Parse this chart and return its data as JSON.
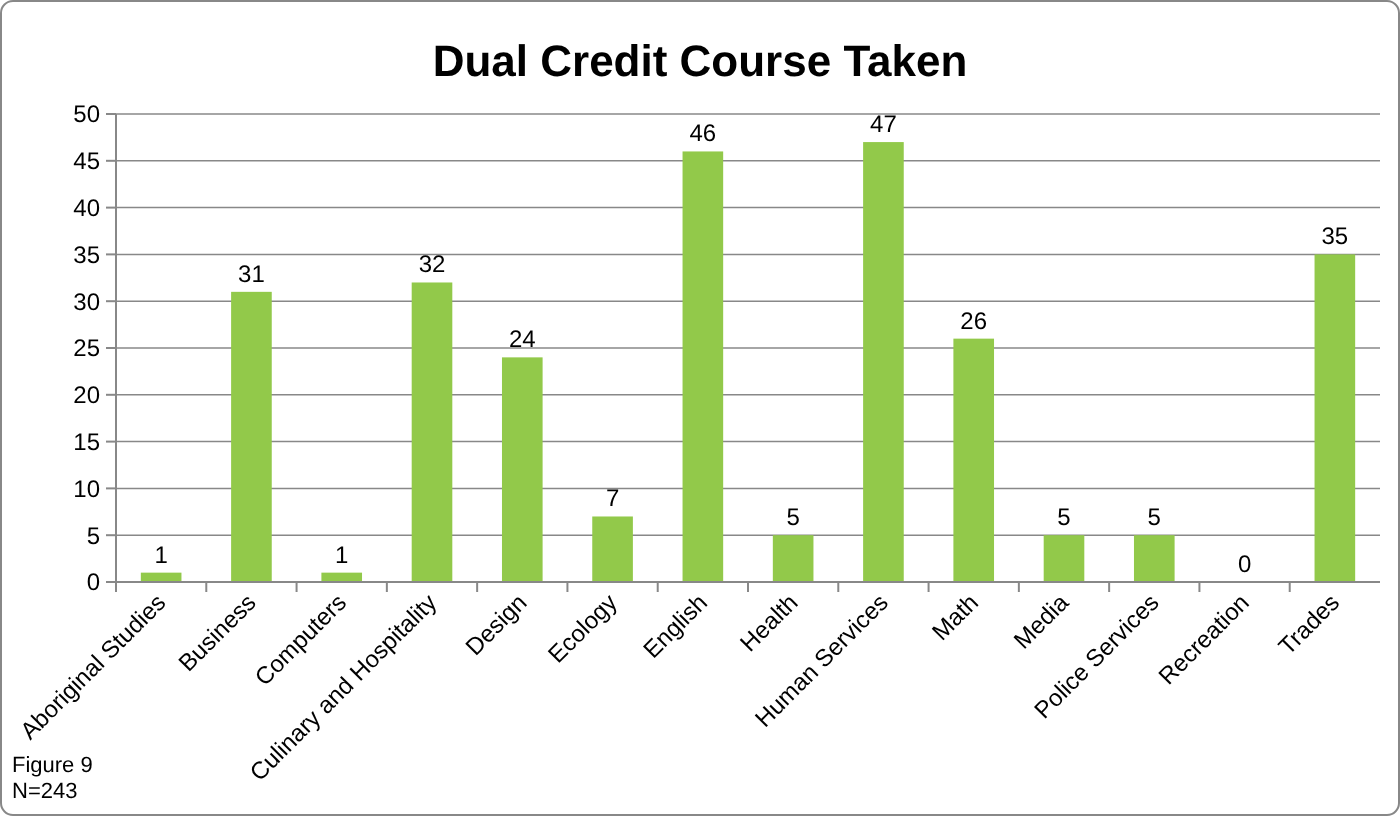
{
  "chart_data": {
    "type": "bar",
    "title": "Dual Credit Course Taken",
    "categories": [
      "Aboriginal Studies",
      "Business",
      "Computers",
      "Culinary and Hospitality",
      "Design",
      "Ecology",
      "English",
      "Health",
      "Human Services",
      "Math",
      "Media",
      "Police Services",
      "Recreation",
      "Trades"
    ],
    "values": [
      1,
      31,
      1,
      32,
      24,
      7,
      46,
      5,
      47,
      26,
      5,
      5,
      0,
      35
    ],
    "color": "#92c94a",
    "ylim": [
      0,
      50
    ],
    "yticks": [
      0,
      5,
      10,
      15,
      20,
      25,
      30,
      35,
      40,
      45,
      50
    ],
    "grid": "y",
    "data_labels": true,
    "annotations": [
      "Figure 9",
      "N=243"
    ]
  }
}
